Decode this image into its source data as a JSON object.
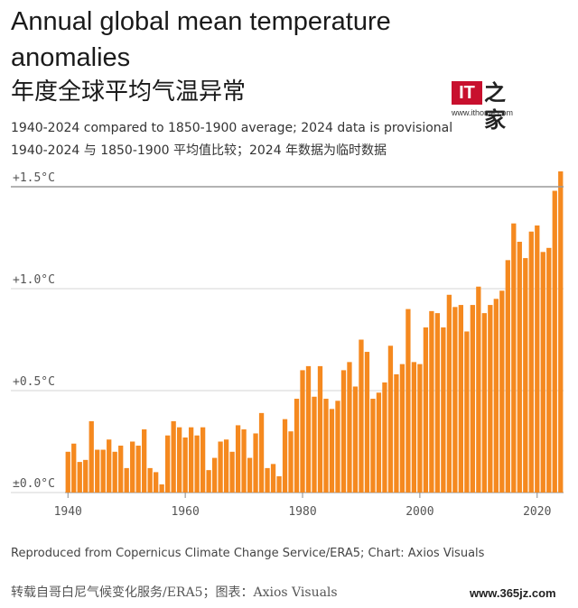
{
  "header": {
    "title": "Annual global mean temperature anomalies",
    "title_cn": "年度全球平均气温异常",
    "subtitle": "1940-2024 compared to 1850-1900 average; 2024 data is provisional",
    "subtitle_cn": "1940-2024 与 1850-1900 平均值比较；2024 年数据为临时数据"
  },
  "logo": {
    "mark": "IT",
    "glyph": "之家",
    "url": "www.ithome.com"
  },
  "footer": {
    "source": "Reproduced from Copernicus Climate Change Service/ERA5; Chart: Axios Visuals",
    "source_cn": "转载自哥白尼气候变化服务/ERA5；图表：Axios Visuals",
    "watermark": "www.365jz.com"
  },
  "colors": {
    "bar": "#f5891f",
    "grid": "#d4d4d4",
    "reference_line": "#9a9a9a"
  },
  "chart_data": {
    "type": "bar",
    "x": [
      1940,
      1941,
      1942,
      1943,
      1944,
      1945,
      1946,
      1947,
      1948,
      1949,
      1950,
      1951,
      1952,
      1953,
      1954,
      1955,
      1956,
      1957,
      1958,
      1959,
      1960,
      1961,
      1962,
      1963,
      1964,
      1965,
      1966,
      1967,
      1968,
      1969,
      1970,
      1971,
      1972,
      1973,
      1974,
      1975,
      1976,
      1977,
      1978,
      1979,
      1980,
      1981,
      1982,
      1983,
      1984,
      1985,
      1986,
      1987,
      1988,
      1989,
      1990,
      1991,
      1992,
      1993,
      1994,
      1995,
      1996,
      1997,
      1998,
      1999,
      2000,
      2001,
      2002,
      2003,
      2004,
      2005,
      2006,
      2007,
      2008,
      2009,
      2010,
      2011,
      2012,
      2013,
      2014,
      2015,
      2016,
      2017,
      2018,
      2019,
      2020,
      2021,
      2022,
      2023,
      2024
    ],
    "values": [
      0.2,
      0.24,
      0.15,
      0.16,
      0.35,
      0.21,
      0.21,
      0.26,
      0.2,
      0.23,
      0.12,
      0.25,
      0.23,
      0.31,
      0.12,
      0.1,
      0.04,
      0.28,
      0.35,
      0.32,
      0.27,
      0.32,
      0.28,
      0.32,
      0.11,
      0.17,
      0.25,
      0.26,
      0.2,
      0.33,
      0.31,
      0.17,
      0.29,
      0.39,
      0.12,
      0.14,
      0.08,
      0.36,
      0.3,
      0.46,
      0.6,
      0.62,
      0.47,
      0.62,
      0.46,
      0.41,
      0.45,
      0.6,
      0.64,
      0.52,
      0.75,
      0.69,
      0.46,
      0.49,
      0.54,
      0.72,
      0.58,
      0.63,
      0.9,
      0.64,
      0.63,
      0.81,
      0.89,
      0.88,
      0.81,
      0.97,
      0.91,
      0.92,
      0.79,
      0.92,
      1.01,
      0.88,
      0.92,
      0.95,
      0.99,
      1.14,
      1.32,
      1.23,
      1.15,
      1.28,
      1.31,
      1.18,
      1.2,
      1.48,
      1.6
    ],
    "yticks": [
      0.0,
      0.5,
      1.0,
      1.5
    ],
    "ytick_labels": [
      "±0.0°C",
      "+0.5°C",
      "+1.0°C",
      "+1.5°C"
    ],
    "xticks": [
      1940,
      1960,
      1980,
      2000,
      2020
    ],
    "xtick_labels": [
      "1940",
      "1960",
      "1980",
      "2000",
      "2020"
    ],
    "ylim": [
      0,
      1.6
    ],
    "reference_line": 1.5,
    "xlabel": "",
    "ylabel": ""
  }
}
